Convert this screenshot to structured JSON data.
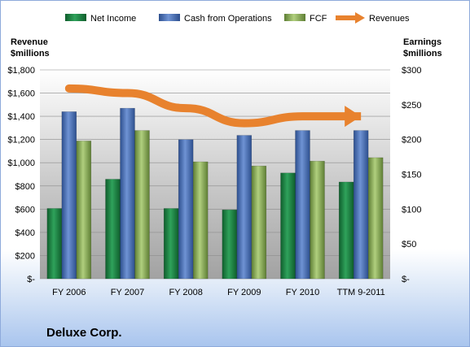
{
  "chart_data": {
    "type": "bar",
    "company": "Deluxe Corp.",
    "categories": [
      "FY 2006",
      "FY 2007",
      "FY 2008",
      "FY 2009",
      "FY 2010",
      "TTM 9-2011"
    ],
    "series": [
      {
        "name": "Net Income",
        "axis": "right",
        "color": "#1e8a4a",
        "values": [
          101,
          143,
          101,
          99,
          152,
          139
        ]
      },
      {
        "name": "Cash from Operations",
        "axis": "right",
        "color": "#4a6fb5",
        "values": [
          240,
          245,
          200,
          206,
          213,
          213
        ]
      },
      {
        "name": "FCF",
        "axis": "right",
        "color": "#8db25a",
        "values": [
          198,
          213,
          168,
          162,
          169,
          174
        ]
      }
    ],
    "line_series": {
      "name": "Revenues",
      "axis": "left",
      "color": "#e8822e",
      "values": [
        1640,
        1600,
        1470,
        1340,
        1400,
        1400
      ]
    },
    "left_axis": {
      "title_line1": "Revenue",
      "title_line2": "$millions",
      "ylim": [
        0,
        1800
      ],
      "ticks": [
        {
          "value": 0,
          "label": "$-"
        },
        {
          "value": 200,
          "label": "$200"
        },
        {
          "value": 400,
          "label": "$400"
        },
        {
          "value": 600,
          "label": "$600"
        },
        {
          "value": 800,
          "label": "$800"
        },
        {
          "value": 1000,
          "label": "$1,000"
        },
        {
          "value": 1200,
          "label": "$1,200"
        },
        {
          "value": 1400,
          "label": "$1,400"
        },
        {
          "value": 1600,
          "label": "$1,600"
        },
        {
          "value": 1800,
          "label": "$1,800"
        }
      ]
    },
    "right_axis": {
      "title_line1": "Earnings",
      "title_line2": "$millions",
      "ylim": [
        0,
        300
      ],
      "ticks": [
        {
          "value": 0,
          "label": "$-"
        },
        {
          "value": 50,
          "label": "$50"
        },
        {
          "value": 100,
          "label": "$100"
        },
        {
          "value": 150,
          "label": "$150"
        },
        {
          "value": 200,
          "label": "$200"
        },
        {
          "value": 250,
          "label": "$250"
        },
        {
          "value": 300,
          "label": "$300"
        }
      ]
    },
    "legend_position": "top"
  }
}
